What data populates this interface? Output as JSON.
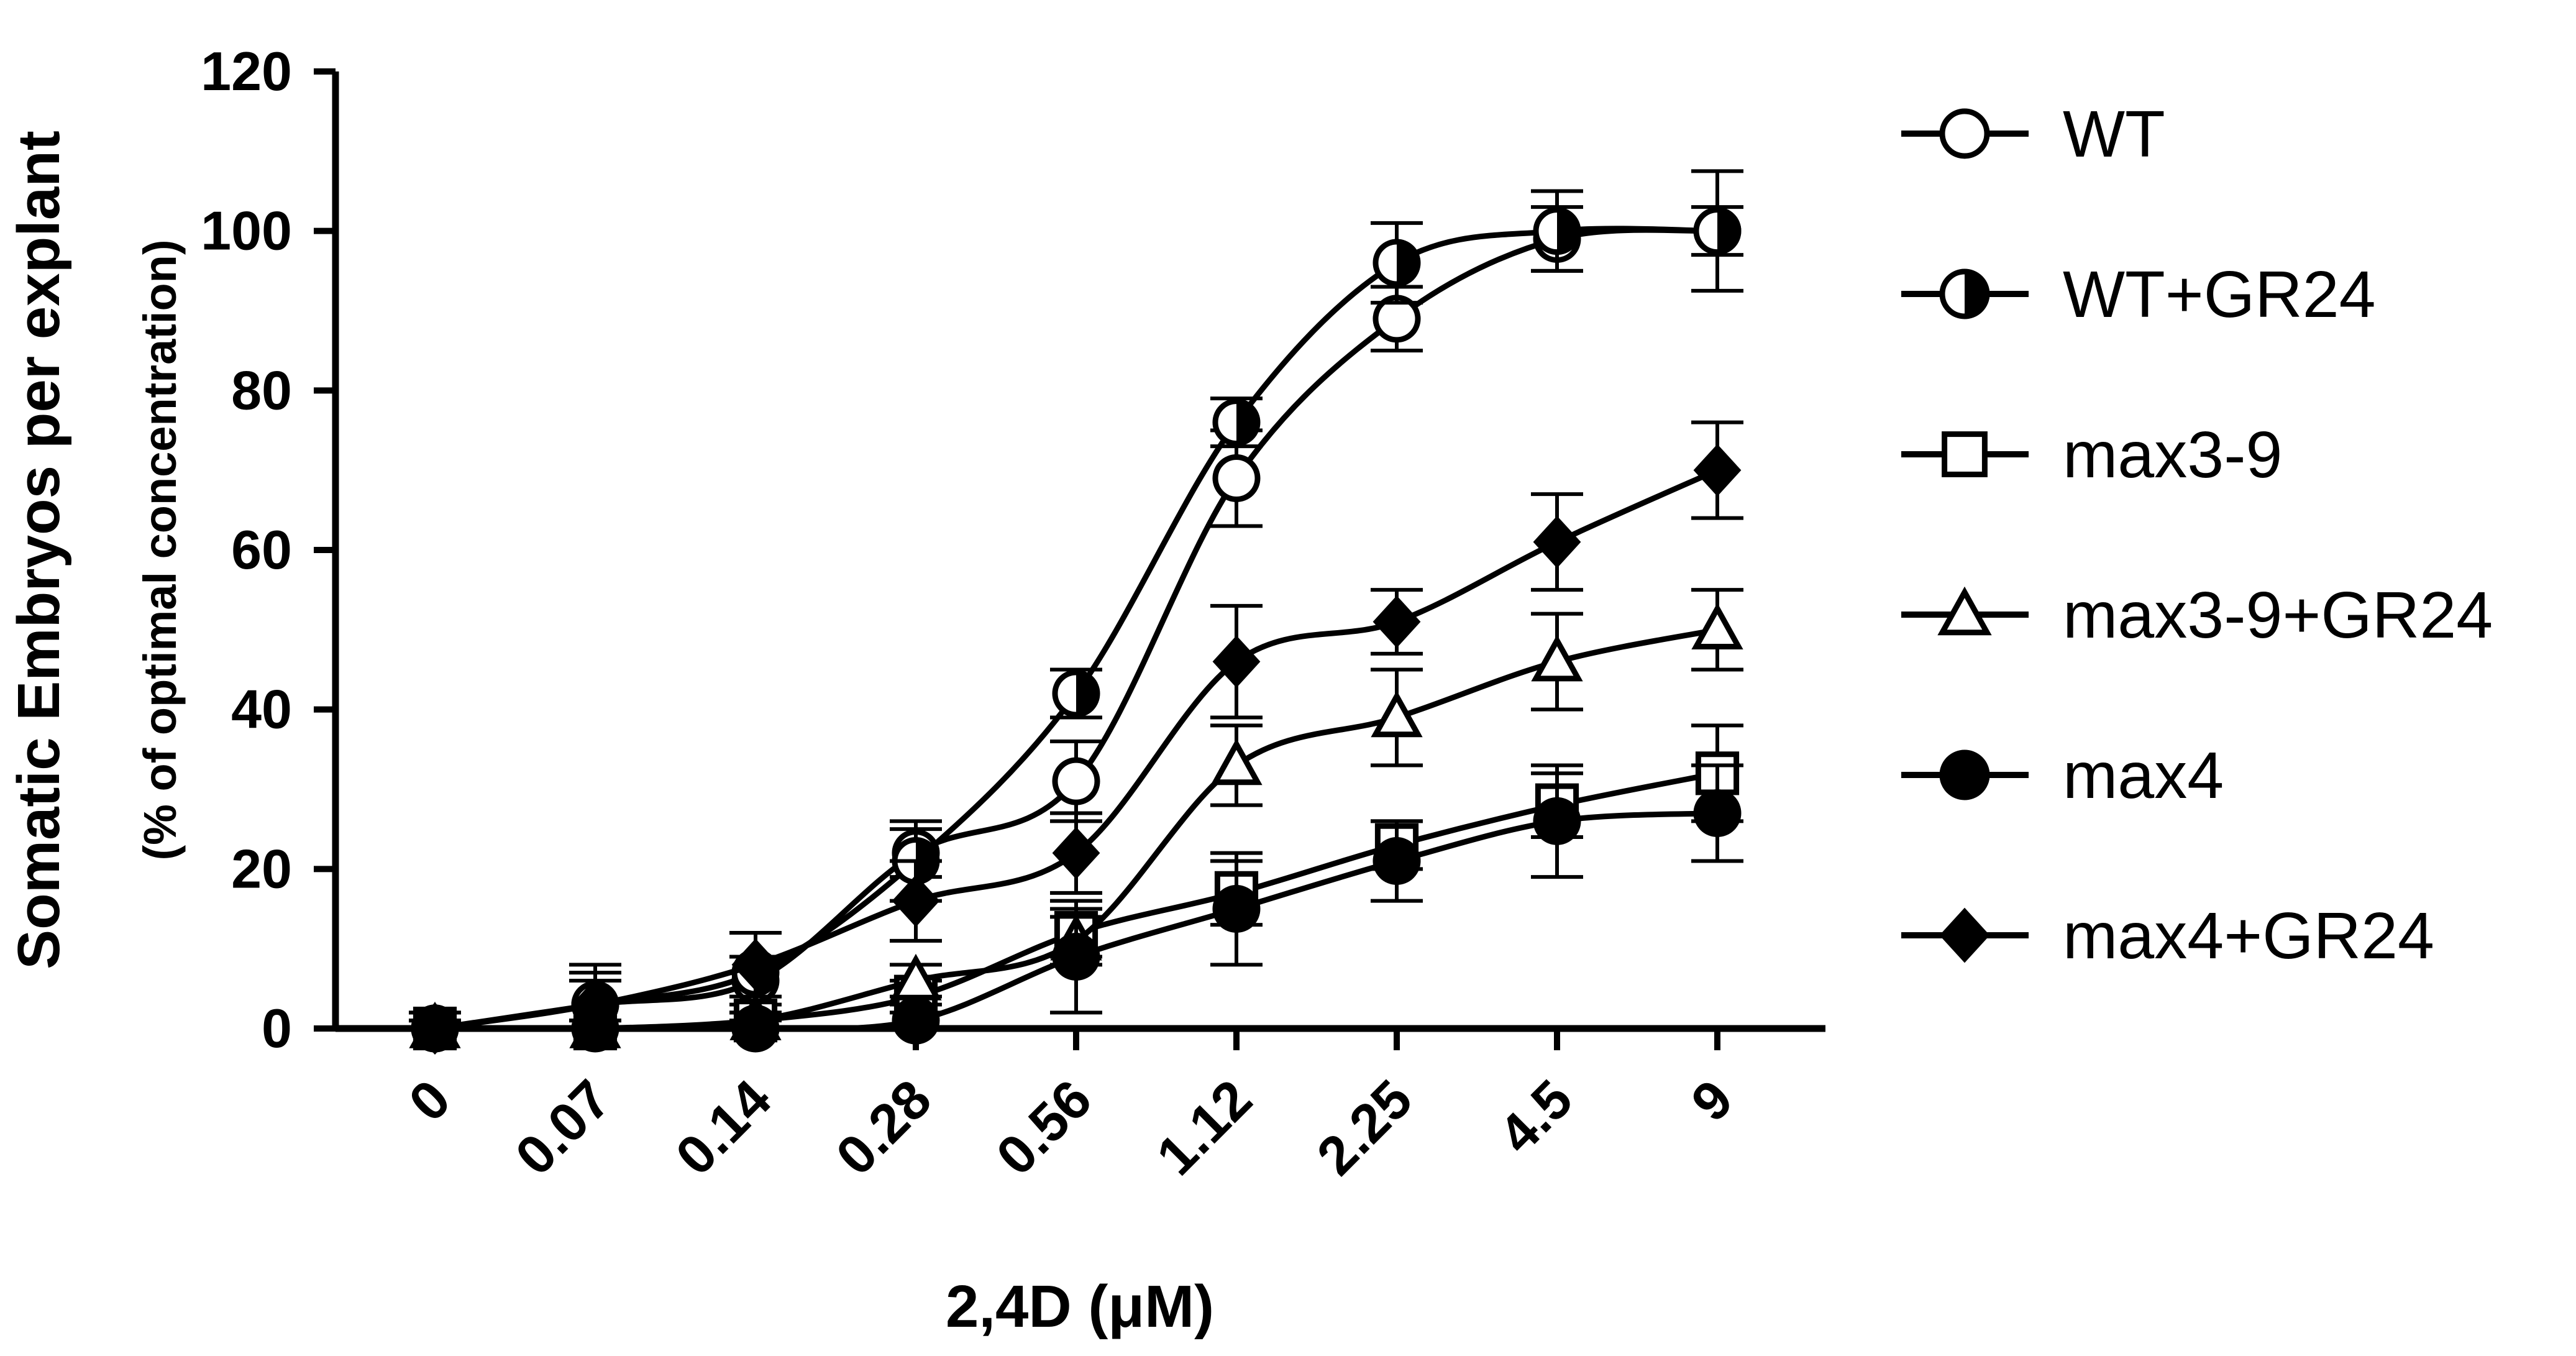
{
  "chart_data": {
    "type": "line",
    "title": "",
    "xlabel": "2,4D (μM)",
    "ylabel": "Somatic Embryos per explant",
    "ylabel_sub": "(% of optimal concentration)",
    "categories": [
      "0",
      "0.07",
      "0.14",
      "0.28",
      "0.56",
      "1.12",
      "2.25",
      "4.5",
      "9"
    ],
    "yticks": [
      "0",
      "20",
      "40",
      "60",
      "80",
      "100",
      "120"
    ],
    "ylim": [
      0,
      120
    ],
    "legend_position": "right",
    "series": [
      {
        "name": "WT",
        "marker": "circle-open",
        "values": [
          0,
          3,
          6,
          22,
          31,
          69,
          89,
          99,
          100
        ],
        "errors": [
          2,
          4,
          3,
          3,
          5,
          6,
          4,
          4,
          3
        ]
      },
      {
        "name": "WT+GR24",
        "marker": "circle-half",
        "values": [
          0,
          3,
          7,
          21,
          42,
          76,
          96,
          100,
          100
        ],
        "errors": [
          2,
          5,
          5,
          5,
          3,
          3,
          5,
          5,
          7.5
        ]
      },
      {
        "name": "max3-9",
        "marker": "square-open",
        "values": [
          0,
          0,
          1,
          4,
          12,
          17,
          23,
          28,
          32
        ],
        "errors": [
          1,
          1,
          1,
          2,
          3,
          4,
          3,
          4,
          6
        ]
      },
      {
        "name": "max3-9+GR24",
        "marker": "triangle-open",
        "values": [
          0,
          0,
          1,
          6,
          11,
          33,
          39,
          46,
          50
        ],
        "errors": [
          1,
          1,
          1,
          2,
          3,
          5,
          6,
          6,
          5
        ]
      },
      {
        "name": "max4",
        "marker": "circle-filled",
        "values": [
          0,
          0,
          0,
          1,
          9,
          15,
          21,
          26,
          27
        ],
        "errors": [
          1,
          1,
          1,
          2,
          7,
          7,
          5,
          7,
          6
        ]
      },
      {
        "name": "max4+GR24",
        "marker": "diamond-filled",
        "values": [
          0,
          3,
          8,
          16,
          22,
          46,
          51,
          61,
          70
        ],
        "errors": [
          1,
          3,
          4,
          5,
          5,
          7,
          4,
          6,
          6
        ]
      }
    ]
  }
}
